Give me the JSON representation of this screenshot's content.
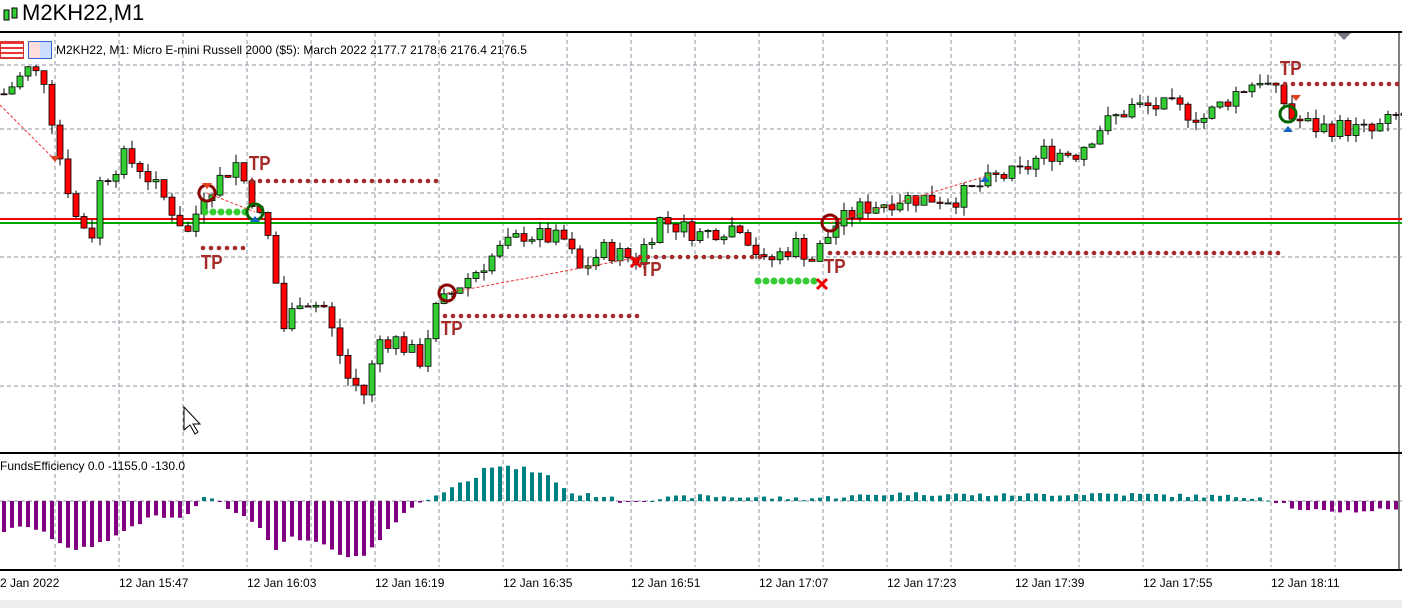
{
  "window": {
    "title": "M2KH22,M1"
  },
  "header": {
    "info": "M2KH22, M1:  Micro E-mini Russell 2000 ($5): March 2022  2177.7 2178.6 2176.4 2176.5"
  },
  "indicator": {
    "label": "FundsEfficiency 0.0 -1155.0 -130.0"
  },
  "time_labels": [
    "2 Jan 2022",
    "12 Jan 15:47",
    "12 Jan 16:03",
    "12 Jan 16:19",
    "12 Jan 16:35",
    "12 Jan 16:51",
    "12 Jan 17:07",
    "12 Jan 17:23",
    "12 Jan 17:39",
    "12 Jan 17:55",
    "12 Jan 18:11"
  ],
  "tp_label": "TP",
  "colors": {
    "bull": "#32cd32",
    "bear": "#ff0000",
    "pos": "#008080",
    "neg": "#800080",
    "tp": "#a52a2a"
  },
  "chart_data": {
    "type": "candlestick",
    "symbol": "M2KH22",
    "timeframe": "M1",
    "last_ohlc": [
      2177.7,
      2178.6,
      2176.4,
      2176.5
    ],
    "price_path": [
      [
        0,
        2179.1
      ],
      [
        3,
        2181.1
      ],
      [
        5,
        2180.4
      ],
      [
        7,
        2173.8
      ],
      [
        9,
        2168.8
      ],
      [
        11,
        2167.5
      ],
      [
        12,
        2171.7
      ],
      [
        15,
        2173.8
      ],
      [
        17,
        2173.0
      ],
      [
        20,
        2170.4
      ],
      [
        23,
        2167.5
      ],
      [
        25,
        2170.8
      ],
      [
        29,
        2173.3
      ],
      [
        31,
        2170.4
      ],
      [
        33,
        2167.1
      ],
      [
        35,
        2159.6
      ],
      [
        37,
        2162.1
      ],
      [
        40,
        2161.3
      ],
      [
        43,
        2155.4
      ],
      [
        45,
        2154.1
      ],
      [
        47,
        2158.6
      ],
      [
        49,
        2158.6
      ],
      [
        52,
        2156.9
      ],
      [
        54,
        2161.1
      ],
      [
        57,
        2163.2
      ],
      [
        62,
        2166.1
      ],
      [
        65,
        2167.4
      ],
      [
        70,
        2166.9
      ],
      [
        72,
        2164.4
      ],
      [
        75,
        2166.1
      ],
      [
        79,
        2165.3
      ],
      [
        82,
        2168.6
      ],
      [
        87,
        2167.4
      ],
      [
        92,
        2168.2
      ],
      [
        95,
        2164.9
      ],
      [
        99,
        2166.6
      ],
      [
        101,
        2165.3
      ],
      [
        104,
        2168.2
      ],
      [
        107,
        2169.5
      ],
      [
        112,
        2170.4
      ],
      [
        119,
        2170.4
      ],
      [
        124,
        2172.1
      ],
      [
        127,
        2172.5
      ],
      [
        130,
        2174.2
      ],
      [
        134,
        2174.2
      ],
      [
        137,
        2176.3
      ],
      [
        141,
        2178.0
      ],
      [
        146,
        2178.0
      ],
      [
        150,
        2177.1
      ],
      [
        154,
        2179.2
      ],
      [
        157,
        2180.4
      ],
      [
        160,
        2178.4
      ],
      [
        161,
        2177.1
      ],
      [
        164,
        2176.3
      ],
      [
        167,
        2176.3
      ],
      [
        171,
        2175.9
      ],
      [
        175,
        2177.5
      ]
    ],
    "indicator_path": [
      [
        0,
        -600
      ],
      [
        3,
        -500
      ],
      [
        5,
        -650
      ],
      [
        9,
        -1000
      ],
      [
        11,
        -900
      ],
      [
        14,
        -700
      ],
      [
        16,
        -500
      ],
      [
        19,
        -300
      ],
      [
        21,
        -350
      ],
      [
        23,
        -300
      ],
      [
        25,
        100
      ],
      [
        27,
        -30
      ],
      [
        30,
        -300
      ],
      [
        32,
        -500
      ],
      [
        34,
        -1000
      ],
      [
        36,
        -700
      ],
      [
        40,
        -900
      ],
      [
        43,
        -1155
      ],
      [
        45,
        -1100
      ],
      [
        47,
        -800
      ],
      [
        50,
        -200
      ],
      [
        52,
        -50
      ],
      [
        55,
        200
      ],
      [
        59,
        500
      ],
      [
        60,
        700
      ],
      [
        65,
        650
      ],
      [
        68,
        500
      ],
      [
        71,
        150
      ],
      [
        75,
        100
      ],
      [
        77,
        0
      ],
      [
        87,
        100
      ],
      [
        100,
        50
      ],
      [
        112,
        150
      ],
      [
        125,
        120
      ],
      [
        137,
        150
      ],
      [
        150,
        100
      ],
      [
        157,
        80
      ],
      [
        160,
        -50
      ],
      [
        162,
        -200
      ],
      [
        170,
        -200
      ],
      [
        175,
        -130
      ]
    ]
  }
}
